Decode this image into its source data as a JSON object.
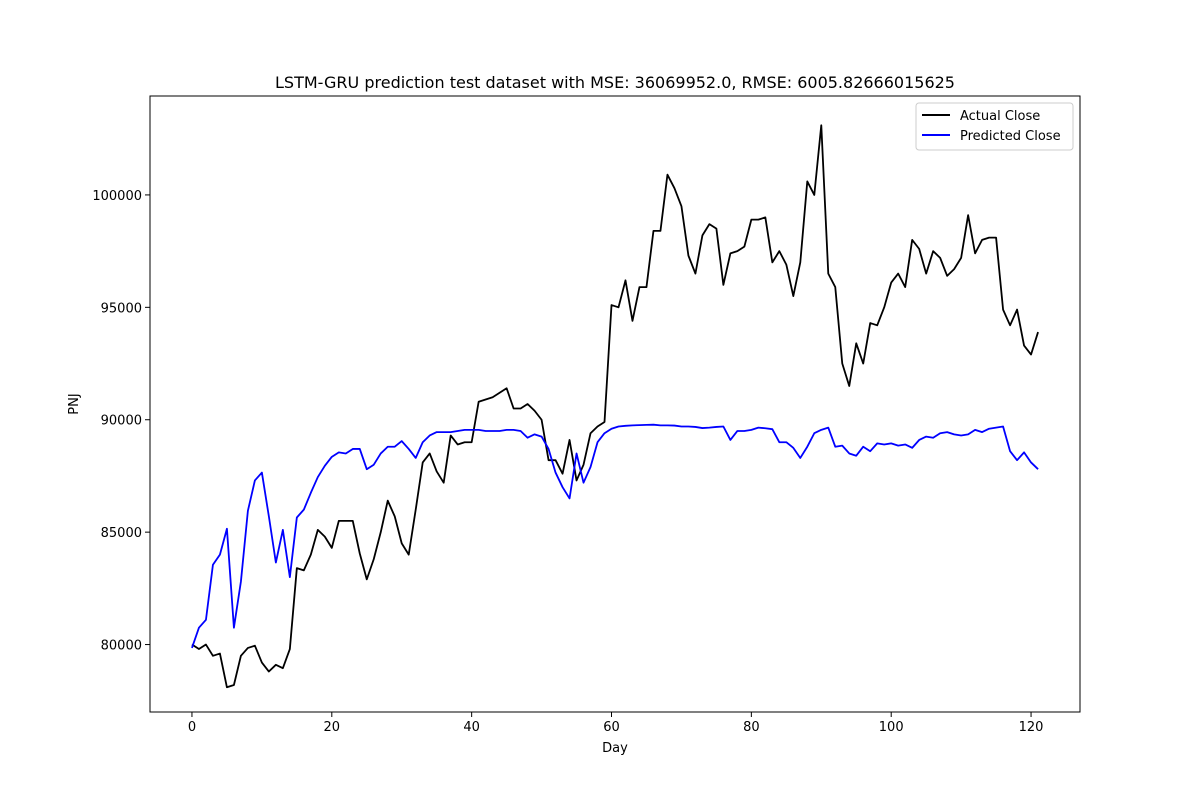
{
  "chart_data": {
    "type": "line",
    "title": "LSTM-GRU prediction test dataset with MSE: 36069952.0, RMSE: 6005.82666015625",
    "xlabel": "Day",
    "ylabel": "PNJ",
    "xlim": [
      -6,
      127
    ],
    "ylim": [
      77000,
      104400
    ],
    "xticks": [
      0,
      20,
      40,
      60,
      80,
      100,
      120
    ],
    "yticks": [
      80000,
      85000,
      90000,
      95000,
      100000
    ],
    "grid": false,
    "legend_position": "top-right",
    "series": [
      {
        "name": "Actual Close",
        "color": "#000000",
        "values": [
          80000,
          79800,
          80000,
          79500,
          79600,
          78100,
          78200,
          79500,
          79850,
          79950,
          79200,
          78800,
          79100,
          78950,
          79800,
          83400,
          83300,
          84000,
          85100,
          84800,
          84300,
          85500,
          85500,
          85500,
          84050,
          82900,
          83800,
          85000,
          86400,
          85700,
          84500,
          84000,
          86000,
          88100,
          88500,
          87700,
          87200,
          89300,
          88900,
          89000,
          89000,
          90800,
          90900,
          91000,
          91200,
          91400,
          90500,
          90500,
          90700,
          90400,
          90000,
          88200,
          88200,
          87600,
          89100,
          87300,
          88000,
          89400,
          89700,
          89900,
          95100,
          95000,
          96200,
          94400,
          95900,
          95900,
          98400,
          98400,
          100900,
          100300,
          99500,
          97300,
          96500,
          98200,
          98700,
          98500,
          96000,
          97400,
          97500,
          97700,
          98900,
          98900,
          99000,
          97000,
          97500,
          96900,
          95500,
          97000,
          100600,
          100000,
          103100,
          96500,
          95900,
          92500,
          91500,
          93400,
          92500,
          94300,
          94200,
          95000,
          96100,
          96500,
          95900,
          98000,
          97600,
          96500,
          97500,
          97200,
          96400,
          96700,
          97200,
          99100,
          97400,
          98000,
          98100,
          98100,
          94900,
          94200,
          94900,
          93300,
          92900,
          93900
        ]
      },
      {
        "name": "Predicted Close",
        "color": "#0000ff",
        "values": [
          79850,
          80750,
          81100,
          83550,
          84000,
          85150,
          80750,
          82800,
          85950,
          87300,
          87650,
          85700,
          83650,
          85100,
          83000,
          85650,
          86000,
          86750,
          87450,
          87950,
          88350,
          88550,
          88500,
          88700,
          88700,
          87800,
          88000,
          88500,
          88800,
          88800,
          89050,
          88700,
          88300,
          89000,
          89300,
          89450,
          89450,
          89450,
          89500,
          89550,
          89550,
          89550,
          89500,
          89500,
          89500,
          89550,
          89550,
          89500,
          89200,
          89350,
          89250,
          88700,
          87650,
          87000,
          86500,
          88500,
          87200,
          87900,
          89000,
          89400,
          89600,
          89700,
          89730,
          89750,
          89760,
          89770,
          89780,
          89750,
          89750,
          89740,
          89700,
          89700,
          89680,
          89630,
          89650,
          89680,
          89700,
          89100,
          89500,
          89500,
          89550,
          89650,
          89620,
          89580,
          89000,
          89000,
          88750,
          88300,
          88800,
          89400,
          89550,
          89650,
          88800,
          88850,
          88500,
          88400,
          88800,
          88600,
          88950,
          88900,
          88950,
          88850,
          88900,
          88750,
          89100,
          89250,
          89200,
          89400,
          89450,
          89350,
          89300,
          89350,
          89550,
          89450,
          89600,
          89650,
          89700,
          88600,
          88200,
          88550,
          88100,
          87800
        ]
      }
    ]
  }
}
